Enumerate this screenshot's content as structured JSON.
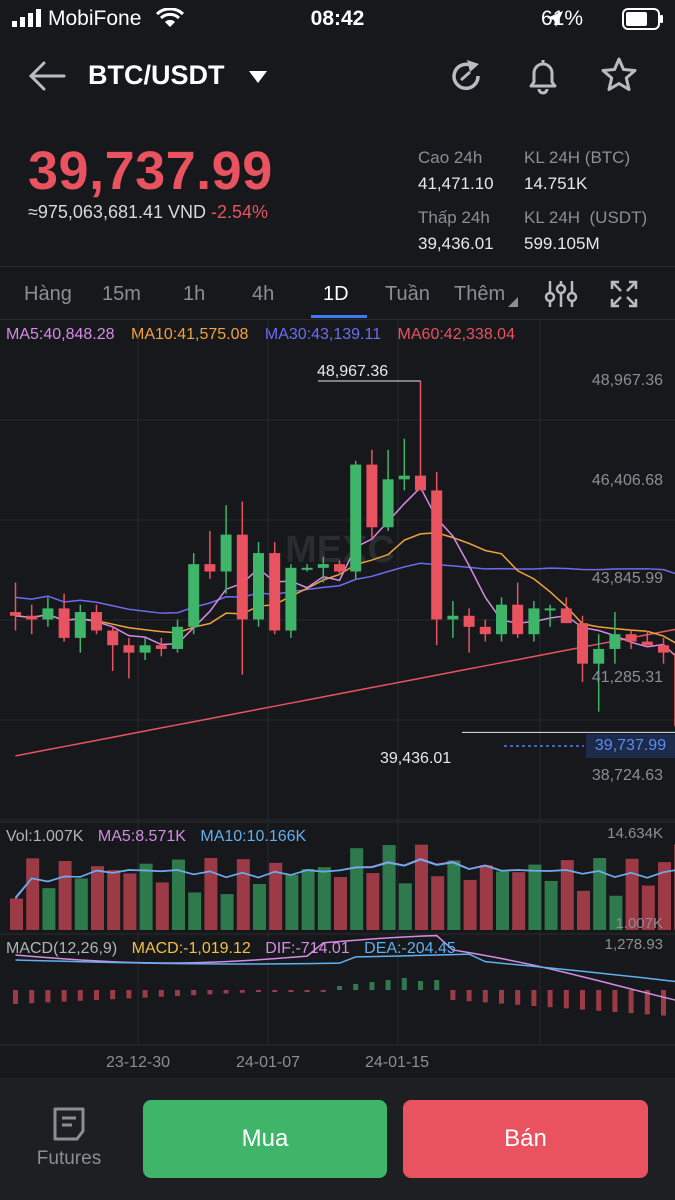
{
  "status_bar": {
    "carrier": "MobiFone",
    "time": "08:42",
    "battery": "61%"
  },
  "header": {
    "pair": "BTC/USDT"
  },
  "price": {
    "last": "39,737.99",
    "vnd": "≈975,063,681.41 VND",
    "change": "-2.54%"
  },
  "stats": {
    "high_label": "Cao 24h",
    "high_value": "41,471.10",
    "vol_btc_label": "KL 24H (BTC)",
    "vol_btc_value": "14.751K",
    "low_label": "Thấp 24h",
    "low_value": "39,436.01",
    "vol_usdt_label": "KL 24H  (USDT)",
    "vol_usdt_value": "599.105M"
  },
  "tabs": [
    {
      "label": "Hàng"
    },
    {
      "label": "15m"
    },
    {
      "label": "1h"
    },
    {
      "label": "4h"
    },
    {
      "label": "1D"
    },
    {
      "label": "Tuần"
    },
    {
      "label": "Thêm"
    }
  ],
  "ma": {
    "ma5": "MA5:40,848.28",
    "ma10": "MA10:41,575.08",
    "ma30": "MA30:43,139.11",
    "ma60": "MA60:42,338.04"
  },
  "price_axis": {
    "labels": [
      "48,967.36",
      "46,406.68",
      "43,845.99",
      "41,285.31",
      "38,724.63"
    ],
    "high_marker": "48,967.36",
    "low_marker": "39,436.01",
    "current": "39,737.99"
  },
  "volume": {
    "vol": "Vol:1.007K",
    "ma5": "MA5:8.571K",
    "ma10": "MA10:10.166K",
    "max_label": "14.634K",
    "min_label": "1.007K"
  },
  "macd": {
    "title": "MACD(12,26,9)",
    "macd": "MACD:-1,019.12",
    "dif": "DIF:-714.01",
    "dea": "DEA:-204.45",
    "top_label": "1,278.93"
  },
  "dates": [
    "23-12-30",
    "24-01-07",
    "24-01-15"
  ],
  "watermark": "MEXC",
  "buttons": {
    "futures": "Futures",
    "buy": "Mua",
    "sell": "Bán"
  },
  "colors": {
    "up": "#3fb56a",
    "down": "#e9525f",
    "ma5": "#d48be3",
    "ma10": "#f0a33a",
    "ma30": "#6a6ef0",
    "ma60": "#e9525f"
  },
  "candles": [
    [
      42700,
      43500,
      42200,
      42600
    ],
    [
      42600,
      42900,
      42100,
      42500
    ],
    [
      42500,
      43100,
      42300,
      42800
    ],
    [
      42800,
      43200,
      41900,
      42000
    ],
    [
      42000,
      42900,
      41600,
      42700
    ],
    [
      42700,
      42900,
      42100,
      42200
    ],
    [
      42200,
      42300,
      41100,
      41800
    ],
    [
      41800,
      42000,
      40900,
      41600
    ],
    [
      41600,
      42000,
      41400,
      41800
    ],
    [
      41800,
      42000,
      41500,
      41700
    ],
    [
      41700,
      42500,
      41600,
      42300
    ],
    [
      42300,
      44300,
      42100,
      44000
    ],
    [
      44000,
      44900,
      43600,
      43800
    ],
    [
      43800,
      45600,
      43200,
      44800
    ],
    [
      44800,
      45700,
      41000,
      42500
    ],
    [
      42500,
      44600,
      42300,
      44300
    ],
    [
      44300,
      44600,
      42100,
      42200
    ],
    [
      42200,
      44000,
      42000,
      43900
    ],
    [
      43900,
      44000,
      43800,
      43900
    ],
    [
      43900,
      44200,
      43500,
      44000
    ],
    [
      44000,
      44100,
      43700,
      43800
    ],
    [
      43800,
      46800,
      43600,
      46700
    ],
    [
      46700,
      47100,
      44700,
      45000
    ],
    [
      45000,
      47100,
      44900,
      46300
    ],
    [
      46300,
      47400,
      46000,
      46400
    ],
    [
      46400,
      48967,
      46000,
      46000
    ],
    [
      46000,
      46500,
      41800,
      42500
    ],
    [
      42500,
      43000,
      42000,
      42600
    ],
    [
      42600,
      42800,
      41600,
      42300
    ],
    [
      42300,
      42500,
      41900,
      42100
    ],
    [
      42100,
      43100,
      41900,
      42900
    ],
    [
      42900,
      43500,
      42000,
      42100
    ],
    [
      42100,
      43000,
      41900,
      42800
    ],
    [
      42800,
      42900,
      42300,
      42800
    ],
    [
      42800,
      43100,
      42400,
      42400
    ],
    [
      42400,
      42600,
      40800,
      41300
    ],
    [
      41300,
      42100,
      40000,
      41700
    ],
    [
      41700,
      42700,
      41300,
      42100
    ],
    [
      42100,
      42200,
      41700,
      41900
    ],
    [
      41900,
      42200,
      41800,
      41800
    ],
    [
      41800,
      42000,
      41300,
      41600
    ],
    [
      41600,
      41700,
      39436,
      39600
    ],
    [
      39600,
      40100,
      39500,
      39738
    ]
  ]
}
